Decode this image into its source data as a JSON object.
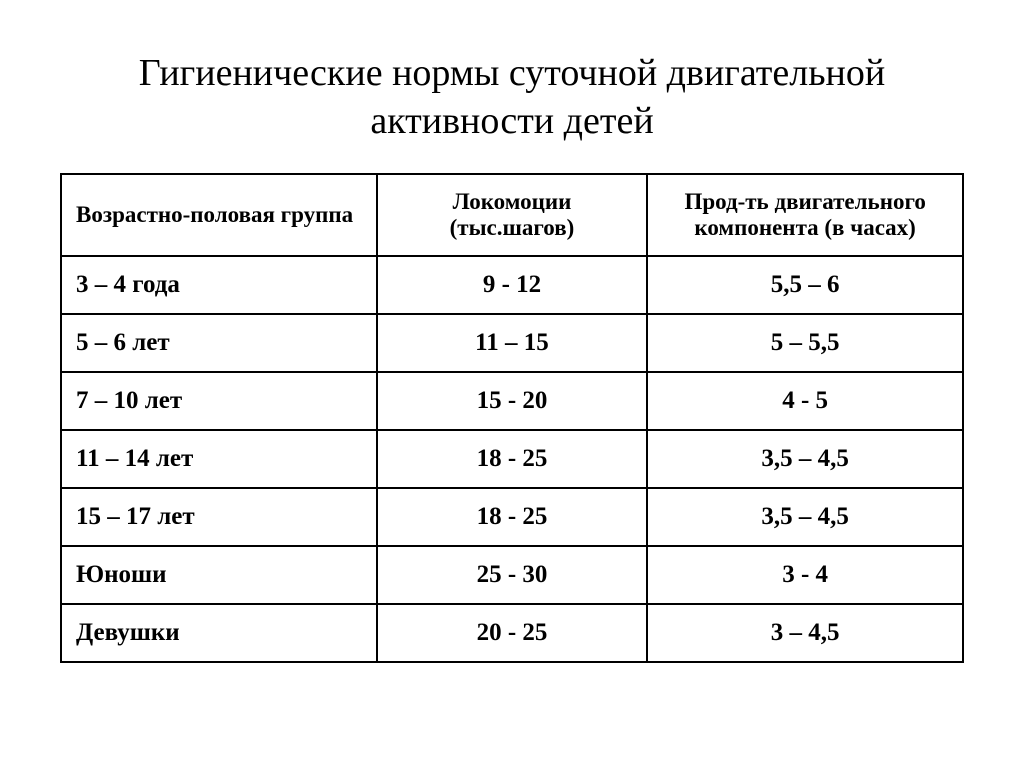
{
  "title": "Гигиенические нормы суточной двигательной активности детей",
  "table": {
    "type": "table",
    "background_color": "#ffffff",
    "border_color": "#000000",
    "border_width": 2,
    "font_family": "Times New Roman",
    "header_fontsize": 23,
    "cell_fontsize": 25,
    "text_color": "#000000",
    "columns": [
      {
        "label": "Возрастно-половая группа",
        "width": "35%",
        "align": "left"
      },
      {
        "label": "Локомоции (тыс.шагов)",
        "width": "30%",
        "align": "center"
      },
      {
        "label": "Прод-ть двигательного компонента (в часах)",
        "width": "35%",
        "align": "center"
      }
    ],
    "rows": [
      {
        "age": "3 – 4 года",
        "locomotion": "9 - 12",
        "duration": "5,5 – 6"
      },
      {
        "age": "5 – 6 лет",
        "locomotion": "11 – 15",
        "duration": "5 – 5,5"
      },
      {
        "age": "7 – 10 лет",
        "locomotion": "15 - 20",
        "duration": "4 - 5"
      },
      {
        "age": "11 – 14 лет",
        "locomotion": "18 - 25",
        "duration": "3,5 – 4,5"
      },
      {
        "age": "15 – 17 лет",
        "locomotion": "18 - 25",
        "duration": "3,5 – 4,5"
      },
      {
        "age": "Юноши",
        "locomotion": "25 - 30",
        "duration": "3 - 4"
      },
      {
        "age": "Девушки",
        "locomotion": "20 - 25",
        "duration": "3 – 4,5"
      }
    ]
  }
}
